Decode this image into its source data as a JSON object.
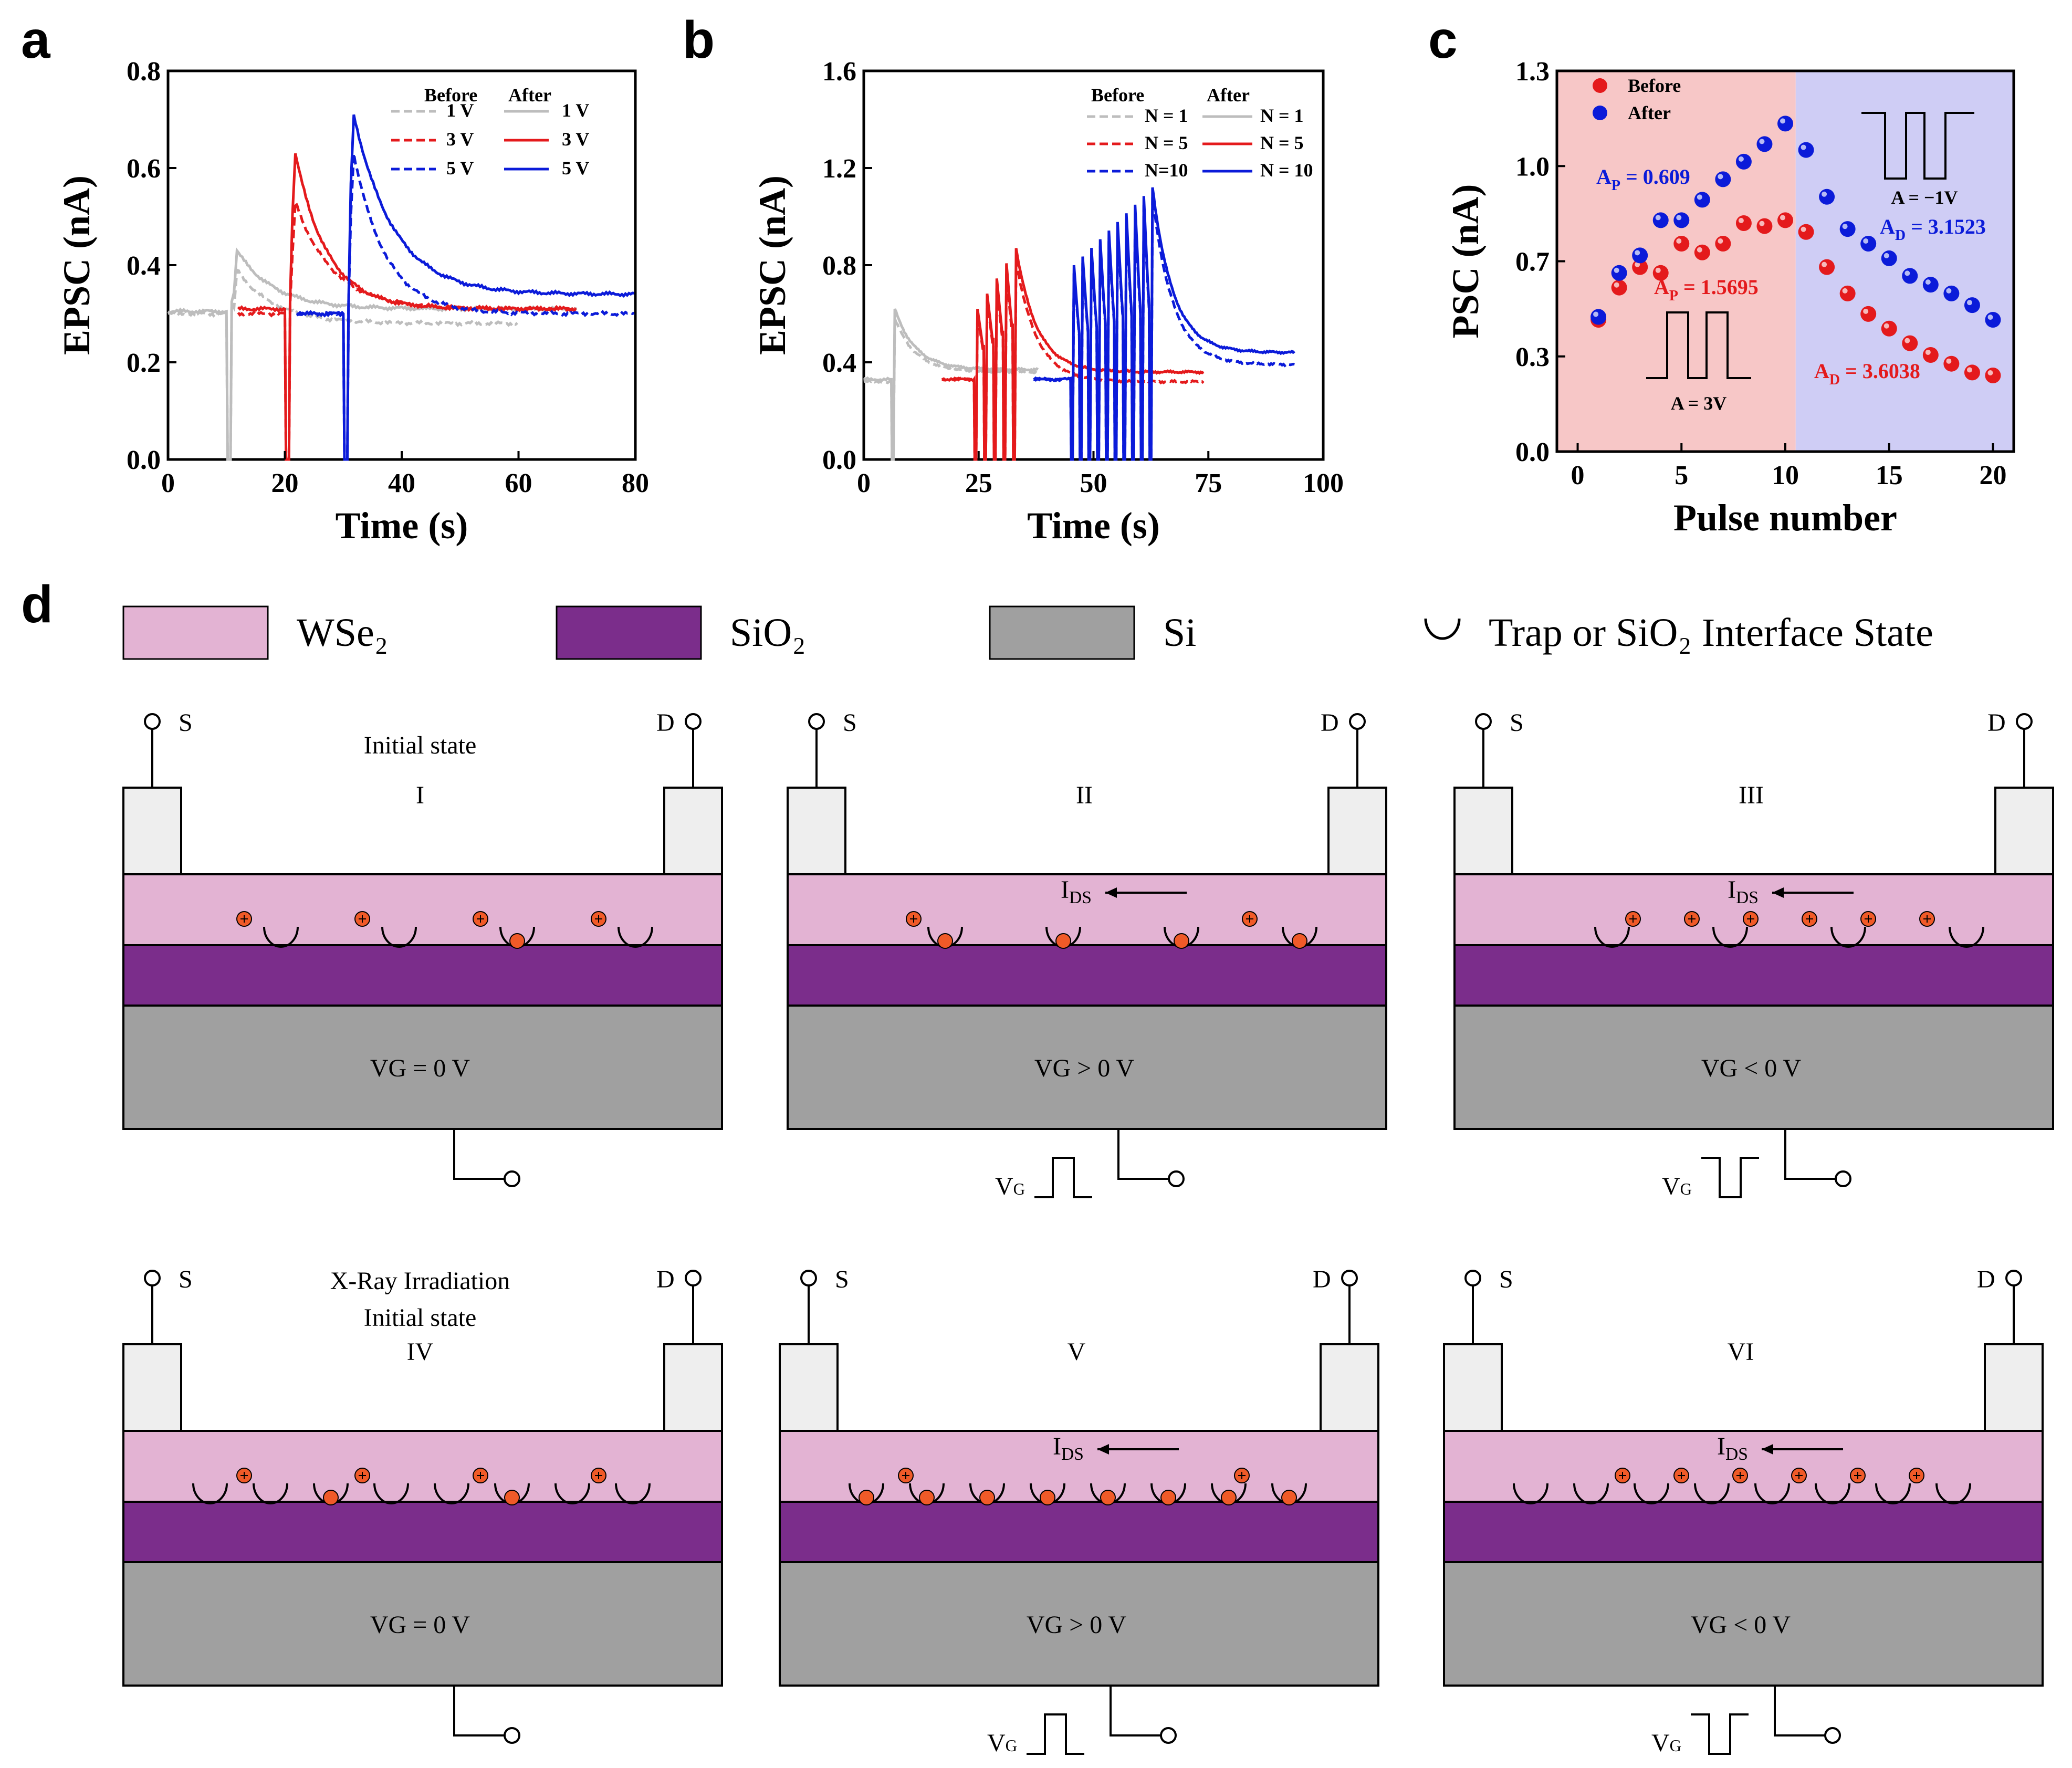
{
  "panels": {
    "a": "a",
    "b": "b",
    "c": "c",
    "d": "d"
  },
  "colors": {
    "gray": "#bdbdbd",
    "red": "#e41a1c",
    "blue": "#0b1bd9",
    "wse2": "#e3b3d3",
    "sio2": "#7b2d8b",
    "si": "#a0a0a0",
    "contact": "#eeeeee",
    "charge": "#f05a28",
    "before_bg": "#f7c7c7",
    "after_bg": "#cfcdf5"
  },
  "chart_data": [
    {
      "id": "a",
      "type": "line",
      "title": "",
      "xlabel": "Time (s)",
      "ylabel": "EPSC (nA)",
      "xlim": [
        0,
        80
      ],
      "ylim": [
        0,
        0.8
      ],
      "xticks": [
        "0",
        "20",
        "40",
        "60",
        "80"
      ],
      "yticks": [
        "0.0",
        "0.2",
        "0.4",
        "0.6",
        "0.8"
      ],
      "legend": {
        "before_title": "Before",
        "after_title": "After",
        "before": [
          "1 V",
          "3 V",
          "5 V"
        ],
        "after": [
          "1 V",
          "3 V",
          "5 V"
        ]
      },
      "series": [
        {
          "name": "Before 1 V",
          "style": "dashed",
          "color": "gray",
          "baseline": 0.3,
          "t_pulse": 10,
          "t_end": 60,
          "peak": 0.39,
          "tail": 0.28,
          "tau": 14
        },
        {
          "name": "After 1 V",
          "style": "solid",
          "color": "gray",
          "baseline": 0.305,
          "t_pulse": 10,
          "t_end": 70,
          "peak": 0.43,
          "tail": 0.31,
          "tau": 14
        },
        {
          "name": "Before 3 V",
          "style": "dashed",
          "color": "red",
          "baseline": 0.3,
          "t_pulse": 20,
          "t_end": 70,
          "peak": 0.53,
          "tail": 0.31,
          "tau": 14
        },
        {
          "name": "After 3 V",
          "style": "solid",
          "color": "red",
          "baseline": 0.31,
          "t_pulse": 20,
          "t_end": 70,
          "peak": 0.63,
          "tail": 0.31,
          "tau": 12
        },
        {
          "name": "Before 5 V",
          "style": "dashed",
          "color": "blue",
          "baseline": 0.3,
          "t_pulse": 30,
          "t_end": 80,
          "peak": 0.63,
          "tail": 0.3,
          "tau": 12
        },
        {
          "name": "After 5 V",
          "style": "solid",
          "color": "blue",
          "baseline": 0.3,
          "t_pulse": 30,
          "t_end": 80,
          "peak": 0.71,
          "tail": 0.34,
          "tau": 15
        }
      ]
    },
    {
      "id": "b",
      "type": "line",
      "title": "",
      "xlabel": "Time (s)",
      "ylabel": "EPSC (nA)",
      "xlim": [
        0,
        100
      ],
      "ylim": [
        0,
        1.6
      ],
      "xticks": [
        "0",
        "25",
        "50",
        "75",
        "100"
      ],
      "yticks": [
        "0.0",
        "0.4",
        "0.8",
        "1.2",
        "1.6"
      ],
      "legend": {
        "before_title": "Before",
        "after_title": "After",
        "before": [
          "N = 1",
          "N = 5",
          "N=10"
        ],
        "after": [
          "N = 1",
          "N = 5",
          "N = 10"
        ]
      },
      "series": [
        {
          "name": "Before N = 1",
          "style": "dashed",
          "color": "gray",
          "n": 1,
          "t_start": 0,
          "t_first": 6,
          "period": 2,
          "t_end": 38,
          "baseline": 0.32,
          "p_first": 0.58,
          "p_last": 0.58,
          "tail": 0.36
        },
        {
          "name": "After N = 1",
          "style": "solid",
          "color": "gray",
          "n": 1,
          "t_start": 0,
          "t_first": 6,
          "period": 2,
          "t_end": 38,
          "baseline": 0.33,
          "p_first": 0.62,
          "p_last": 0.62,
          "tail": 0.37
        },
        {
          "name": "Before N = 5",
          "style": "dashed",
          "color": "red",
          "n": 5,
          "t_start": 17,
          "t_first": 24,
          "period": 2.1,
          "t_end": 74,
          "baseline": 0.33,
          "p_first": 0.6,
          "p_last": 0.82,
          "tail": 0.32
        },
        {
          "name": "After N = 5",
          "style": "solid",
          "color": "red",
          "n": 5,
          "t_start": 17,
          "t_first": 24,
          "period": 2.1,
          "t_end": 74,
          "baseline": 0.33,
          "p_first": 0.62,
          "p_last": 0.87,
          "tail": 0.36
        },
        {
          "name": "Before N=10",
          "style": "dashed",
          "color": "blue",
          "n": 10,
          "t_start": 37,
          "t_first": 45,
          "period": 1.9,
          "t_end": 94,
          "baseline": 0.33,
          "p_first": 0.78,
          "p_last": 1.08,
          "tail": 0.39
        },
        {
          "name": "After N = 10",
          "style": "solid",
          "color": "blue",
          "n": 10,
          "t_start": 37,
          "t_first": 45,
          "period": 1.9,
          "t_end": 94,
          "baseline": 0.33,
          "p_first": 0.8,
          "p_last": 1.12,
          "tail": 0.44
        }
      ]
    },
    {
      "id": "c",
      "type": "scatter",
      "title": "",
      "xlabel": "Pulse number",
      "ylabel": "PSC (nA)",
      "xlim": [
        -1,
        21
      ],
      "ylim": [
        0,
        1.3
      ],
      "xticks": [
        "0",
        "5",
        "10",
        "15",
        "20"
      ],
      "yticks": [
        "0.0",
        "0.3",
        "0.7",
        "1.0",
        "1.3"
      ],
      "region_split": 10.5,
      "legend": [
        "Before",
        "After"
      ],
      "x": [
        1,
        2,
        3,
        4,
        5,
        6,
        7,
        8,
        9,
        10,
        11,
        12,
        13,
        14,
        15,
        16,
        17,
        18,
        19,
        20
      ],
      "series": [
        {
          "name": "Before",
          "color": "red",
          "values": [
            0.45,
            0.56,
            0.63,
            0.61,
            0.71,
            0.68,
            0.71,
            0.78,
            0.77,
            0.79,
            0.75,
            0.63,
            0.54,
            0.47,
            0.42,
            0.37,
            0.33,
            0.3,
            0.27,
            0.26
          ]
        },
        {
          "name": "After",
          "color": "blue",
          "values": [
            0.46,
            0.61,
            0.67,
            0.79,
            0.79,
            0.86,
            0.93,
            0.99,
            1.05,
            1.12,
            1.03,
            0.87,
            0.76,
            0.71,
            0.66,
            0.6,
            0.57,
            0.54,
            0.5,
            0.45
          ]
        }
      ],
      "annotations": {
        "ap_after": "A",
        "ap_after_sub": "P",
        "ap_after_val": " = 0.609",
        "ap_before": "A",
        "ap_before_sub": "P",
        "ap_before_val": " = 1.5695",
        "ad_after": "A",
        "ad_after_sub": "D",
        "ad_after_val": " = 3.1523",
        "ad_before": "A",
        "ad_before_sub": "D",
        "ad_before_val": " = 3.6038",
        "pulse_pos": "A = 3V",
        "pulse_neg": "A = −1V"
      }
    }
  ],
  "diagram": {
    "legend": {
      "wse2": "WSe₂",
      "sio2": "SiO₂",
      "si": "Si",
      "trap": "Trap or SiO₂ Interface State"
    },
    "source": "S",
    "drain": "D",
    "vg_sub": "VG",
    "ids": "I",
    "ids_sub": "DS",
    "states": [
      {
        "id": "I",
        "roman": "I",
        "caption1": "Initial state",
        "caption2": "",
        "gate": "VG = 0 V",
        "pulse": "none",
        "ids": false,
        "traps": 4,
        "trapped": [
          2
        ],
        "holes": [
          0,
          1,
          2,
          3
        ]
      },
      {
        "id": "II",
        "roman": "II",
        "caption1": "",
        "caption2": "",
        "gate": "VG > 0 V",
        "pulse": "pos",
        "ids": true,
        "traps": 4,
        "trapped": [
          0,
          1,
          2,
          3
        ],
        "holes": [
          0,
          3
        ]
      },
      {
        "id": "III",
        "roman": "III",
        "caption1": "",
        "caption2": "",
        "gate": "VG < 0 V",
        "pulse": "neg",
        "ids": true,
        "traps": 4,
        "trapped": [],
        "holes": [
          0,
          1,
          2,
          3,
          4,
          5
        ]
      },
      {
        "id": "IV",
        "roman": "IV",
        "caption1": "X-Ray  Irradiation",
        "caption2": "Initial state",
        "gate": "VG = 0 V",
        "pulse": "none",
        "ids": false,
        "traps": 8,
        "trapped": [
          2,
          5
        ],
        "holes": [
          0,
          1,
          2,
          3
        ]
      },
      {
        "id": "V",
        "roman": "V",
        "caption1": "",
        "caption2": "",
        "gate": "VG > 0 V",
        "pulse": "pos",
        "ids": true,
        "traps": 8,
        "trapped": [
          0,
          1,
          2,
          3,
          4,
          5,
          6,
          7
        ],
        "holes": [
          0,
          3
        ]
      },
      {
        "id": "VI",
        "roman": "VI",
        "caption1": "",
        "caption2": "",
        "gate": "VG < 0 V",
        "pulse": "neg",
        "ids": true,
        "traps": 8,
        "trapped": [],
        "holes": [
          0,
          1,
          2,
          3,
          4,
          5
        ]
      }
    ]
  }
}
